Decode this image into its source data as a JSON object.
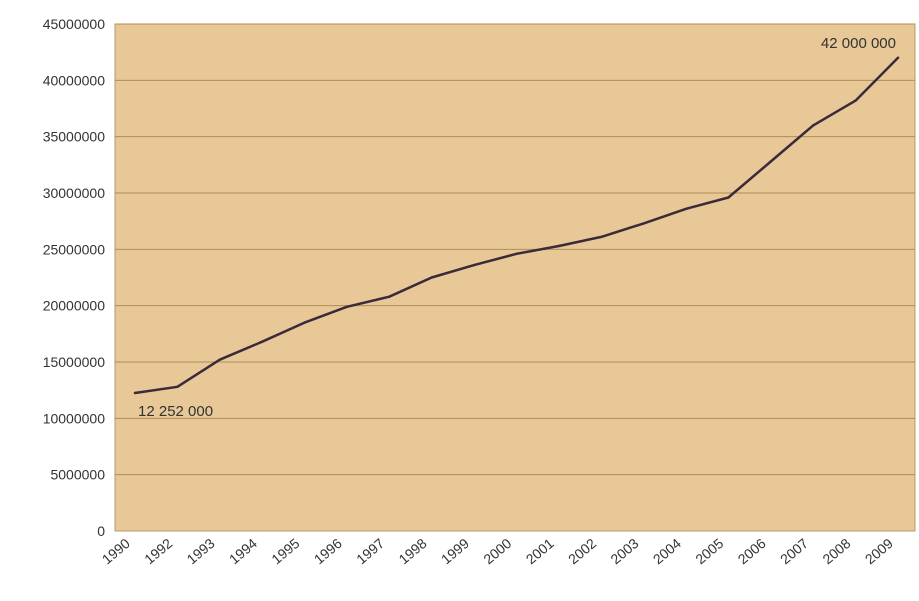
{
  "chart_data": {
    "type": "line",
    "categories": [
      "1990",
      "1992",
      "1993",
      "1994",
      "1995",
      "1996",
      "1997",
      "1998",
      "1999",
      "2000",
      "2001",
      "2002",
      "2003",
      "2004",
      "2005",
      "2006",
      "2007",
      "2008",
      "2009"
    ],
    "series": [
      {
        "values": [
          12252000,
          12800000,
          15200000,
          16800000,
          18500000,
          19900000,
          20800000,
          22500000,
          23600000,
          24600000,
          25300000,
          26100000,
          27300000,
          28600000,
          29600000,
          32800000,
          36000000,
          38200000,
          42000000
        ]
      }
    ],
    "yticks": [
      "0",
      "5000000",
      "10000000",
      "15000000",
      "20000000",
      "25000000",
      "30000000",
      "35000000",
      "40000000",
      "45000000"
    ],
    "ylim": [
      0,
      45000000
    ],
    "annotations": [
      {
        "text": "12 252 000",
        "category": "1990"
      },
      {
        "text": "42 000 000",
        "category": "2009"
      }
    ],
    "grid": true,
    "colors": {
      "plot_background": "#e8c897",
      "plot_border": "#b89868",
      "gridline": "#b08c58",
      "line": "#3a2a3a",
      "text": "#333333"
    }
  }
}
